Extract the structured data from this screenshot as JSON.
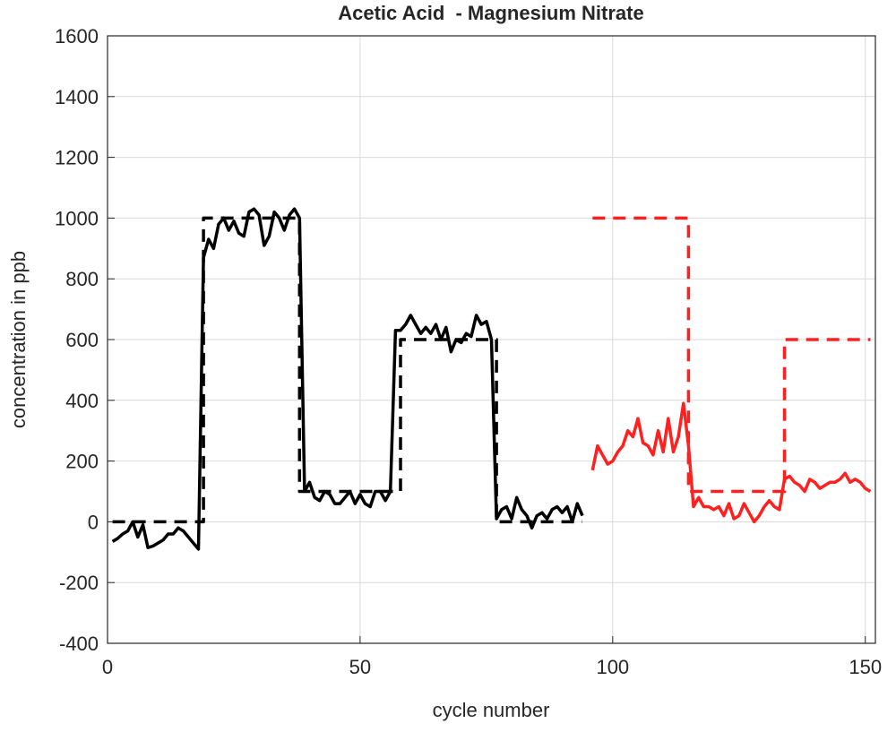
{
  "chart_data": {
    "type": "line",
    "title": "Acetic Acid  - Magnesium Nitrate",
    "xlabel": "cycle number",
    "ylabel": "concentration in ppb",
    "xlim": [
      0,
      152
    ],
    "ylim": [
      -400,
      1600
    ],
    "xticks": [
      0,
      50,
      100,
      150
    ],
    "yticks": [
      -400,
      -200,
      0,
      200,
      400,
      600,
      800,
      1000,
      1200,
      1400,
      1600
    ],
    "grid": true,
    "series": [
      {
        "color": "#000000",
        "dashed": false,
        "x": [
          1,
          2,
          3,
          4,
          5,
          6,
          7,
          8,
          9,
          10,
          11,
          12,
          13,
          14,
          15,
          16,
          17,
          18,
          19,
          20,
          21,
          22,
          23,
          24,
          25,
          26,
          27,
          28,
          29,
          30,
          31,
          32,
          33,
          34,
          35,
          36,
          37,
          38,
          39,
          40,
          41,
          42,
          43,
          44,
          45,
          46,
          47,
          48,
          49,
          50,
          51,
          52,
          53,
          54,
          55,
          56,
          57,
          58,
          59,
          60,
          61,
          62,
          63,
          64,
          65,
          66,
          67,
          68,
          69,
          70,
          71,
          72,
          73,
          74,
          75,
          76,
          77,
          78,
          79,
          80,
          81,
          82,
          83,
          84,
          85,
          86,
          87,
          88,
          89,
          90,
          91,
          92,
          93,
          94
        ],
        "values": [
          -65,
          -55,
          -40,
          -30,
          0,
          -50,
          -10,
          -85,
          -80,
          -70,
          -60,
          -40,
          -40,
          -20,
          -30,
          -50,
          -70,
          -90,
          870,
          930,
          900,
          980,
          1000,
          960,
          990,
          950,
          940,
          1020,
          1030,
          1010,
          910,
          940,
          1020,
          1000,
          960,
          1010,
          1030,
          1000,
          100,
          130,
          80,
          70,
          100,
          90,
          60,
          60,
          80,
          100,
          60,
          90,
          60,
          50,
          100,
          100,
          70,
          100,
          630,
          630,
          650,
          680,
          650,
          620,
          640,
          620,
          650,
          600,
          640,
          560,
          600,
          590,
          620,
          610,
          680,
          650,
          660,
          600,
          10,
          40,
          50,
          10,
          80,
          40,
          20,
          -20,
          20,
          30,
          10,
          40,
          50,
          30,
          50,
          0,
          60,
          20
        ]
      },
      {
        "color": "#000000",
        "dashed": true,
        "x": [
          1,
          19,
          19,
          38,
          38,
          58,
          58,
          77,
          77,
          94
        ],
        "values": [
          0,
          0,
          1000,
          1000,
          100,
          100,
          600,
          600,
          0,
          0
        ]
      },
      {
        "color": "#ff2020",
        "dashed": false,
        "x": [
          96,
          97,
          98,
          99,
          100,
          101,
          102,
          103,
          104,
          105,
          106,
          107,
          108,
          109,
          110,
          111,
          112,
          113,
          114,
          115,
          116,
          117,
          118,
          119,
          120,
          121,
          122,
          123,
          124,
          125,
          126,
          127,
          128,
          129,
          130,
          131,
          132,
          133,
          134,
          135,
          136,
          137,
          138,
          139,
          140,
          141,
          142,
          143,
          144,
          145,
          146,
          147,
          148,
          149,
          150,
          151
        ],
        "values": [
          170,
          250,
          220,
          190,
          200,
          230,
          250,
          300,
          280,
          340,
          260,
          250,
          220,
          300,
          230,
          340,
          230,
          280,
          390,
          250,
          50,
          80,
          50,
          50,
          40,
          50,
          20,
          60,
          10,
          20,
          60,
          30,
          0,
          20,
          50,
          70,
          50,
          40,
          140,
          150,
          130,
          120,
          100,
          140,
          130,
          110,
          120,
          130,
          130,
          140,
          160,
          130,
          140,
          130,
          110,
          100
        ]
      },
      {
        "color": "#ff2020",
        "dashed": true,
        "x": [
          96,
          115,
          115,
          134,
          134,
          151
        ],
        "values": [
          1000,
          1000,
          100,
          100,
          600,
          600
        ]
      }
    ]
  }
}
